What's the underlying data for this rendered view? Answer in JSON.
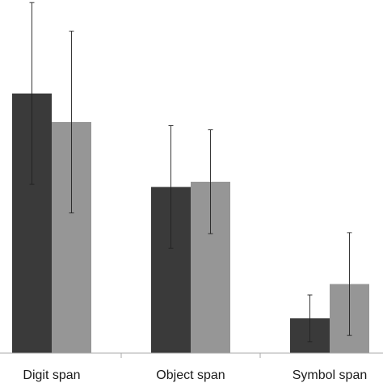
{
  "chart_data": {
    "type": "bar",
    "categories": [
      "Digit span",
      "Object span",
      "Symbol span"
    ],
    "series": [
      {
        "color": "#3a3a3a",
        "values": [
          5.0,
          3.2,
          0.67
        ],
        "errors": [
          1.75,
          1.18,
          0.45
        ]
      },
      {
        "color": "#969696",
        "values": [
          4.45,
          3.3,
          1.33
        ],
        "errors": [
          1.75,
          1.0,
          0.99
        ]
      }
    ],
    "ylim": [
      0,
      6.8
    ],
    "grid": false,
    "legend": "none",
    "xlabel": "",
    "ylabel": "",
    "title": ""
  }
}
